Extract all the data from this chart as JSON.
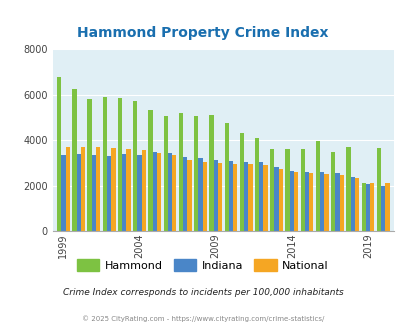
{
  "title": "Hammond Property Crime Index",
  "title_color": "#1a6faf",
  "years": [
    1999,
    2000,
    2001,
    2002,
    2003,
    2004,
    2005,
    2006,
    2007,
    2008,
    2009,
    2010,
    2011,
    2012,
    2013,
    2014,
    2015,
    2016,
    2017,
    2018,
    2019,
    2020
  ],
  "x_tick_labels": [
    "1999",
    "2004",
    "2009",
    "2014",
    "2019"
  ],
  "x_tick_positions": [
    1999,
    2004,
    2009,
    2014,
    2019
  ],
  "hammond": [
    6800,
    6250,
    5800,
    5900,
    5850,
    5750,
    5350,
    5050,
    5200,
    5050,
    5100,
    4750,
    4300,
    4100,
    3600,
    3600,
    3600,
    3950,
    3500,
    3700,
    2100,
    3650
  ],
  "indiana": [
    3350,
    3400,
    3350,
    3300,
    3400,
    3350,
    3500,
    3450,
    3250,
    3200,
    3150,
    3100,
    3050,
    3050,
    2800,
    2650,
    2600,
    2600,
    2550,
    2400,
    2050,
    2000
  ],
  "national": [
    3700,
    3700,
    3700,
    3650,
    3600,
    3550,
    3450,
    3350,
    3150,
    3050,
    3000,
    2950,
    2950,
    2900,
    2750,
    2600,
    2550,
    2500,
    2450,
    2350,
    2100,
    2100
  ],
  "hammond_color": "#7dc242",
  "indiana_color": "#4a86c8",
  "national_color": "#f5a623",
  "bg_color": "#e0eff5",
  "ylim": [
    0,
    8000
  ],
  "yticks": [
    0,
    2000,
    4000,
    6000,
    8000
  ],
  "footnote": "Crime Index corresponds to incidents per 100,000 inhabitants",
  "copyright": "© 2025 CityRating.com - https://www.cityrating.com/crime-statistics/",
  "legend_labels": [
    "Hammond",
    "Indiana",
    "National"
  ]
}
